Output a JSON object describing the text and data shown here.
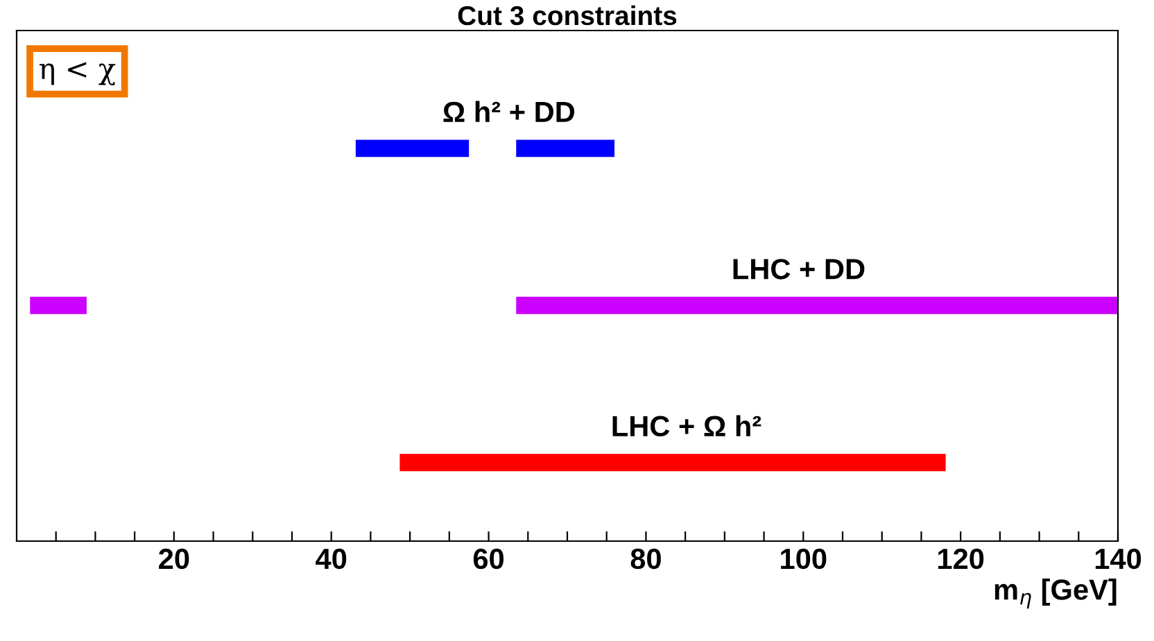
{
  "chart_data": {
    "type": "bar",
    "orientation": "horizontal",
    "title": "Cut 3 constraints",
    "xlabel": "m$_{η}$ [GeV]",
    "categories": [
      null,
      null,
      null
    ],
    "series": [
      {
        "colors": [
          "#0000ff",
          "#cc00ff",
          "#ff0000"
        ],
        "base": [
          43.1,
          1.7,
          48.7
        ],
        "values": [
          14.4,
          7.2,
          69.4
        ]
      },
      {
        "colors": [
          "#0000ff",
          "#cc00ff",
          null
        ],
        "base": [
          63.5,
          63.5,
          null
        ],
        "values": [
          12.5,
          76.5,
          null
        ]
      }
    ],
    "annotations": [
      "η < χ",
      "Ω h² + DD",
      "LHC + DD",
      "LHC + Ω h²"
    ],
    "xlim": [
      0,
      140
    ],
    "xticks": [
      {
        "value": 5,
        "label": null
      },
      {
        "value": 10,
        "label": null
      },
      {
        "value": 15,
        "label": null
      },
      20,
      {
        "value": 25,
        "label": null
      },
      {
        "value": 30,
        "label": null
      },
      {
        "value": 35,
        "label": null
      },
      40,
      {
        "value": 45,
        "label": null
      },
      {
        "value": 50,
        "label": null
      },
      {
        "value": 55,
        "label": null
      },
      60,
      {
        "value": 65,
        "label": null
      },
      {
        "value": 70,
        "label": null
      },
      {
        "value": 75,
        "label": null
      },
      80,
      {
        "value": 85,
        "label": null
      },
      {
        "value": 90,
        "label": null
      },
      {
        "value": 95,
        "label": null
      },
      100,
      {
        "value": 105,
        "label": null
      },
      {
        "value": 110,
        "label": null
      },
      {
        "value": 115,
        "label": null
      },
      120,
      {
        "value": 125,
        "label": null
      },
      {
        "value": 130,
        "label": null
      },
      {
        "value": 135,
        "label": null
      },
      140
    ],
    "tick_labels": "x",
    "grid": false,
    "legend": false
  }
}
